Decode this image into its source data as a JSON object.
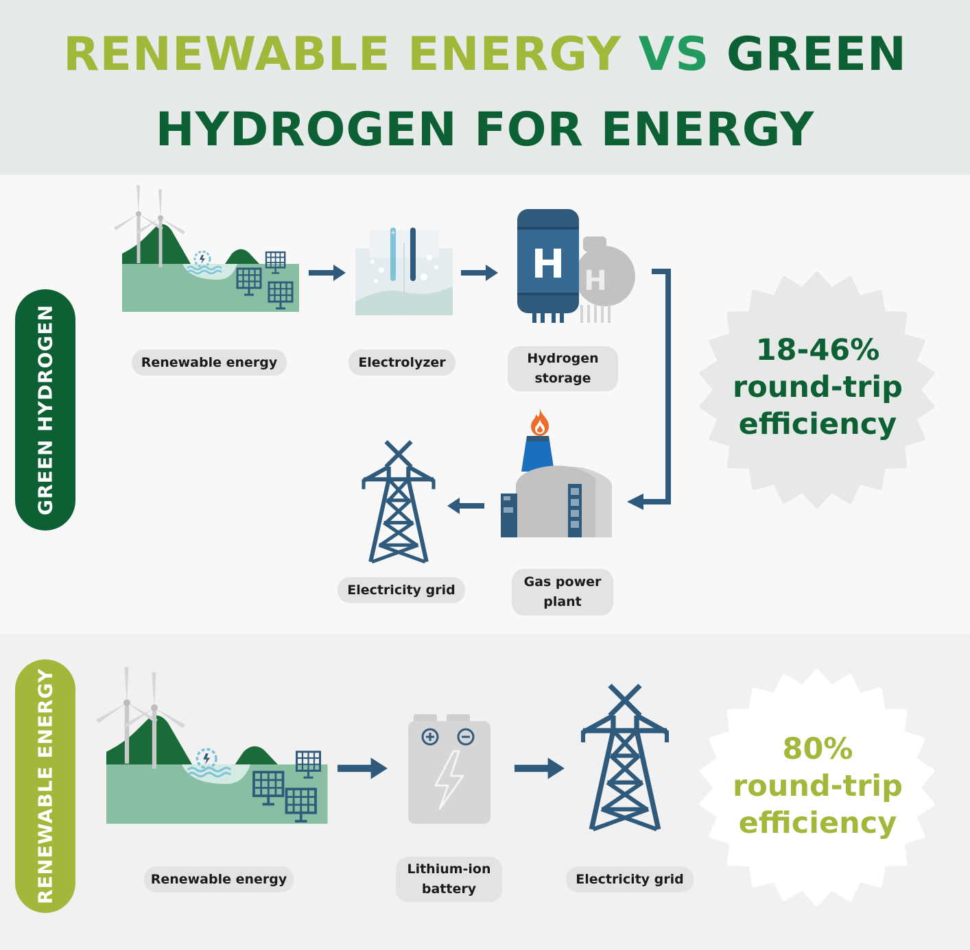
{
  "title": {
    "line1_part1": "RENEWABLE ENERGY",
    "line1_part2": "VS",
    "line1_part3": "GREEN",
    "line2": "HYDROGEN FOR ENERGY"
  },
  "colors": {
    "light_green": "#a1b83b",
    "mid_green": "#239b5f",
    "dark_green": "#0d6033",
    "navy": "#2f5a7c"
  },
  "green_hydrogen": {
    "side_label": "GREEN HYDROGEN",
    "steps": {
      "renewable": "Renewable energy",
      "electrolyzer": "Electrolyzer",
      "storage_line1": "Hydrogen",
      "storage_line2": "storage",
      "plant_line1": "Gas power",
      "plant_line2": "plant",
      "grid": "Electricity grid"
    },
    "storage_letter": "H",
    "efficiency": {
      "value": "18-46%",
      "line2": "round-trip",
      "line3": "efficiency"
    }
  },
  "renewable_energy": {
    "side_label": "RENEWABLE ENERGY",
    "steps": {
      "renewable": "Renewable energy",
      "battery_line1": "Lithium-ion",
      "battery_line2": "battery",
      "grid": "Electricity grid"
    },
    "efficiency": {
      "value": "80%",
      "line2": "round-trip",
      "line3": "efficiency"
    }
  },
  "icons": [
    "wind-turbine-icon",
    "hydro-turbine-icon",
    "solar-panel-icon",
    "electrolyzer-icon",
    "hydrogen-tank-icon",
    "flame-icon",
    "power-plant-icon",
    "transmission-tower-icon",
    "battery-icon",
    "lightning-icon",
    "arrow-right-icon",
    "arrow-left-icon"
  ]
}
